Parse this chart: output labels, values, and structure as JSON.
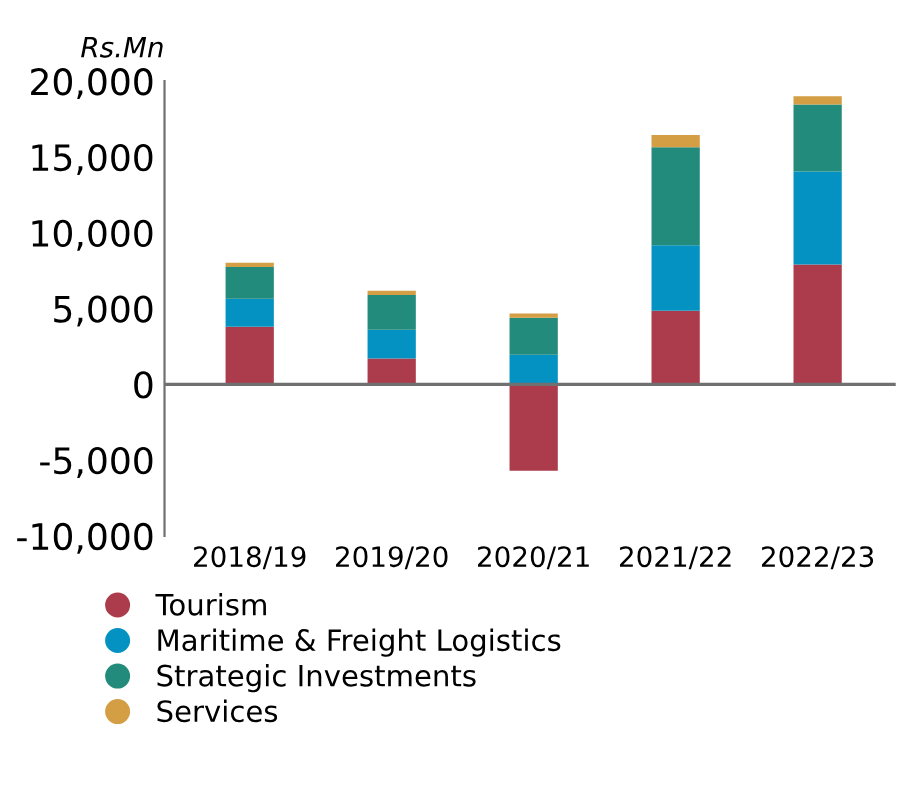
{
  "chart_data": {
    "type": "bar",
    "stacked": true,
    "ylabel": "Rs.Mn",
    "categories": [
      "2018/19",
      "2019/20",
      "2020/21",
      "2021/22",
      "2022/23"
    ],
    "series": [
      {
        "name": "Tourism",
        "color": "#ac3c4c",
        "values": [
          3800,
          1700,
          -5700,
          4850,
          7900
        ]
      },
      {
        "name": "Maritime & Freight Logistics",
        "color": "#0492c2",
        "values": [
          1850,
          1900,
          1950,
          4330,
          6140
        ]
      },
      {
        "name": "Strategic Investments",
        "color": "#238b7b",
        "values": [
          2100,
          2300,
          2450,
          6460,
          4430
        ]
      },
      {
        "name": "Services",
        "color": "#d39e44",
        "values": [
          270,
          270,
          270,
          810,
          540
        ]
      }
    ],
    "ylim": [
      -10000,
      20000
    ],
    "yticks": [
      {
        "value": -10000,
        "label": "-10,000"
      },
      {
        "value": -5000,
        "label": "-5,000"
      },
      {
        "value": 0,
        "label": "0"
      },
      {
        "value": 5000,
        "label": "5,000"
      },
      {
        "value": 10000,
        "label": "10,000"
      },
      {
        "value": 15000,
        "label": "15,000"
      },
      {
        "value": 20000,
        "label": "20,000"
      }
    ],
    "ref_lines": [
      {
        "axis": "y",
        "value": 0,
        "color": "#707070"
      }
    ],
    "grid": false,
    "legend": "bottom"
  }
}
